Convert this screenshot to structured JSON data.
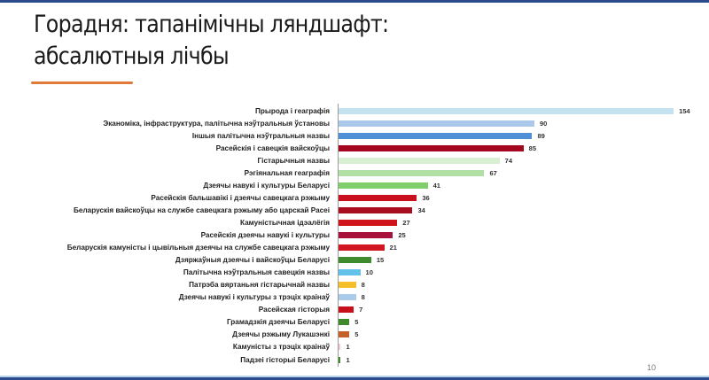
{
  "slide": {
    "title_line1": "Горадня: тапанімічны ляндшафт:",
    "title_line2": "абсалютныя лічбы",
    "page_number": "10",
    "accent_color": "#e07a3a",
    "border_color": "#2b4c8c"
  },
  "chart_data": {
    "type": "bar",
    "orientation": "horizontal",
    "title": "Горадня: тапанімічны ляндшафт: абсалютныя лічбы",
    "xlabel": "",
    "ylabel": "",
    "grid": false,
    "legend": null,
    "xlim": [
      0,
      160
    ],
    "categories": [
      "Прырода і геаграфія",
      "Эканоміка, інфраструктура, палітычна нэўтральныя ўстановы",
      "Іншыя палітычна нэўтральныя назвы",
      "Расейскія і савецкія вайскоўцы",
      "Гістарычныя назвы",
      "Рэгіянальная геаграфія",
      "Дзеячы навукі і культуры Беларусі",
      "Расейскія бальшавікі і дзеячы савецкага рэжыму",
      "Беларускія вайскоўцы на службе савецкага рэжыму або царскай Расеі",
      "Камуністычная ідэалёгія",
      "Расейскія дзеячы навукі і культуры",
      "Беларускія камуністы і цывільныя дзеячы на службе савецкага рэжыму",
      "Дзяржаўныя дзеячы і вайскоўцы Беларусі",
      "Палітычна нэўтральныя савецкія назвы",
      "Патрэба вяртаньня гістарычнай назвы",
      "Дзеячы навукі і культуры з трэціх краінаў",
      "Расейская гісторыя",
      "Грамадзкія дзеячы Беларусі",
      "Дзеячы рэжыму Лукашэнкі",
      "Камуністы з трэціх краінаў",
      "Падзеі гісторыі Беларусі"
    ],
    "values": [
      154,
      90,
      89,
      85,
      74,
      67,
      41,
      36,
      34,
      27,
      25,
      21,
      15,
      10,
      8,
      8,
      7,
      5,
      5,
      1,
      1
    ],
    "colors": [
      "#c5e2f0",
      "#a9c8ea",
      "#4f8fd6",
      "#a3061e",
      "#d8efd2",
      "#b0e0a3",
      "#7fcf6a",
      "#c8101e",
      "#a80e1e",
      "#d0141c",
      "#a8113a",
      "#d01620",
      "#3f8a2c",
      "#62c2ea",
      "#f4bf28",
      "#aacbea",
      "#c8101a",
      "#3f8a2c",
      "#c4602a",
      "#f2c9cc",
      "#3f8a2c"
    ]
  }
}
